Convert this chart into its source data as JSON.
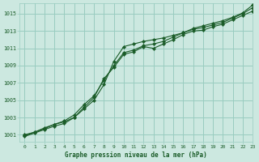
{
  "title": "Graphe pression niveau de la mer (hPa)",
  "background_color": "#cce8e0",
  "grid_color": "#99ccc0",
  "line_color": "#1a5c28",
  "marker_color": "#1a5c28",
  "xlim": [
    -0.5,
    23
  ],
  "ylim": [
    1000.2,
    1016.2
  ],
  "xticks": [
    0,
    1,
    2,
    3,
    4,
    5,
    6,
    7,
    8,
    9,
    10,
    11,
    12,
    13,
    14,
    15,
    16,
    17,
    18,
    19,
    20,
    21,
    22,
    23
  ],
  "yticks": [
    1001,
    1003,
    1005,
    1007,
    1009,
    1011,
    1013,
    1015
  ],
  "series1": [
    1001.0,
    1001.3,
    1001.7,
    1002.2,
    1002.5,
    1003.0,
    1004.2,
    1005.3,
    1007.5,
    1008.8,
    1010.3,
    1010.6,
    1011.2,
    1011.0,
    1011.5,
    1012.0,
    1012.6,
    1013.0,
    1013.1,
    1013.5,
    1013.8,
    1014.3,
    1014.8,
    1015.3
  ],
  "series2": [
    1000.9,
    1001.3,
    1001.8,
    1002.2,
    1002.6,
    1003.3,
    1004.5,
    1005.5,
    1007.3,
    1009.0,
    1010.5,
    1010.8,
    1011.3,
    1011.5,
    1011.8,
    1012.3,
    1012.8,
    1013.2,
    1013.4,
    1013.7,
    1014.0,
    1014.5,
    1015.0,
    1015.7
  ],
  "series3": [
    1000.8,
    1001.2,
    1001.6,
    1002.0,
    1002.3,
    1003.0,
    1004.0,
    1005.0,
    1006.8,
    1009.5,
    1011.2,
    1011.5,
    1011.8,
    1012.0,
    1012.2,
    1012.5,
    1012.8,
    1013.3,
    1013.6,
    1013.9,
    1014.2,
    1014.6,
    1015.1,
    1016.0
  ]
}
